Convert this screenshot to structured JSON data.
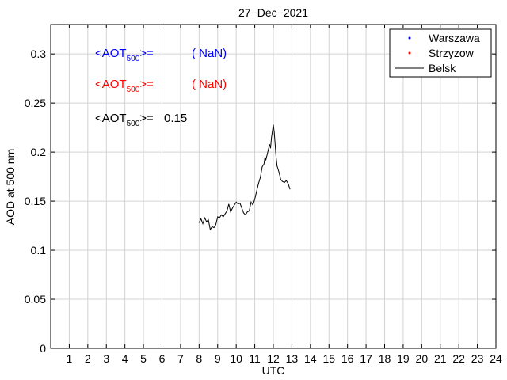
{
  "chart_data": {
    "type": "line",
    "title": "27−Dec−2021",
    "xlabel": "UTC",
    "ylabel": "AOD at 500 nm",
    "xlim": [
      0,
      24
    ],
    "ylim": [
      0,
      0.33
    ],
    "xticks": [
      "1",
      "2",
      "3",
      "4",
      "5",
      "6",
      "7",
      "8",
      "9",
      "10",
      "11",
      "12",
      "13",
      "14",
      "15",
      "16",
      "17",
      "18",
      "19",
      "20",
      "21",
      "22",
      "23",
      "24"
    ],
    "yticks": [
      "0",
      "0.05",
      "0.1",
      "0.15",
      "0.2",
      "0.25",
      "0.3"
    ],
    "grid": true,
    "legend_position": "top-right",
    "annotations": [
      {
        "prefix": "<AOT",
        "sub": "500",
        "suffix": ">=",
        "value": "( NaN)",
        "color": "#0000ff"
      },
      {
        "prefix": "<AOT",
        "sub": "500",
        "suffix": ">=",
        "value": "( NaN)",
        "color": "#ff0000"
      },
      {
        "prefix": "<AOT",
        "sub": "500",
        "suffix": ">=",
        "value": "0.15",
        "color": "#000000"
      }
    ],
    "series": [
      {
        "name": "Warszawa",
        "color": "#0000ff",
        "style": "points",
        "x": [],
        "y": []
      },
      {
        "name": "Strzyzow",
        "color": "#ff0000",
        "style": "points",
        "x": [],
        "y": []
      },
      {
        "name": "Belsk",
        "color": "#000000",
        "style": "line",
        "x": [
          8.0,
          8.1,
          8.2,
          8.3,
          8.4,
          8.5,
          8.6,
          8.7,
          8.8,
          8.9,
          9.0,
          9.1,
          9.2,
          9.3,
          9.4,
          9.5,
          9.6,
          9.7,
          9.8,
          9.9,
          10.0,
          10.1,
          10.2,
          10.3,
          10.4,
          10.5,
          10.6,
          10.7,
          10.8,
          10.9,
          11.0,
          11.1,
          11.2,
          11.3,
          11.4,
          11.5,
          11.55,
          11.6,
          11.7,
          11.8,
          11.85,
          11.9,
          11.95,
          12.0,
          12.05,
          12.1,
          12.15,
          12.2,
          12.3,
          12.4,
          12.5,
          12.6,
          12.7,
          12.8,
          12.9
        ],
        "y": [
          0.128,
          0.132,
          0.127,
          0.133,
          0.129,
          0.131,
          0.121,
          0.124,
          0.123,
          0.126,
          0.134,
          0.133,
          0.136,
          0.134,
          0.137,
          0.14,
          0.147,
          0.139,
          0.143,
          0.146,
          0.149,
          0.147,
          0.148,
          0.143,
          0.138,
          0.136,
          0.139,
          0.14,
          0.149,
          0.146,
          0.152,
          0.16,
          0.168,
          0.174,
          0.185,
          0.188,
          0.195,
          0.192,
          0.2,
          0.208,
          0.204,
          0.215,
          0.221,
          0.228,
          0.22,
          0.208,
          0.195,
          0.186,
          0.18,
          0.172,
          0.17,
          0.169,
          0.171,
          0.168,
          0.162
        ]
      }
    ]
  }
}
